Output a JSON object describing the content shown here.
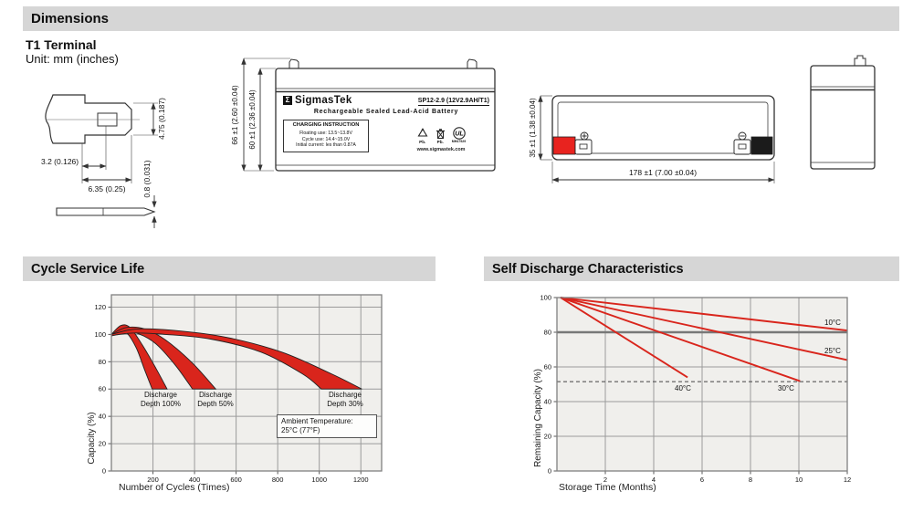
{
  "sections": {
    "dimensions_title": "Dimensions",
    "cycle_title": "Cycle Service Life",
    "self_discharge_title": "Self Discharge Characteristics"
  },
  "dimensions": {
    "subtitle": "T1 Terminal",
    "unit": "Unit: mm (inches)",
    "terminal_dims": {
      "height": "4.75 (0.187)",
      "offset": "3.2 (0.126)",
      "width": "6.35 (0.25)",
      "thickness": "0.8 (0.031)"
    },
    "front_dims": {
      "total_height": "66 ±1 (2.60 ±0.04)",
      "case_height": "60 ±1 (2.36 ±0.04)"
    },
    "top_dims": {
      "height": "35 ±1 (1.38 ±0.04)",
      "length": "178 ±1 (7.00 ±0.04)"
    },
    "label": {
      "logo_glyph": "Σ",
      "brand": "SigmasTek",
      "model": "SP12-2.9 (12V2.9AH/T1)",
      "type": "Rechargeable Sealed Lead-Acid Battery",
      "charging_title": "CHARGING INSTRUCTION",
      "charging_lines": [
        "Floating use: 13.5~13.8V",
        "Cycle use: 14.4~15.0V",
        "Initial current: les than 0.87A"
      ],
      "pb_recycle": "Pb.",
      "pb_bin": "Pb.",
      "ul_letters": "UL",
      "ul_code": "MH47929",
      "website": "www.sigmastek.com"
    }
  },
  "chart_data": [
    {
      "type": "area",
      "title": "Cycle Service Life",
      "xlabel": "Number of Cycles (Times)",
      "ylabel": "Capacity (%)",
      "xlim": [
        0,
        1300
      ],
      "ylim": [
        0,
        129
      ],
      "xticks": [
        200,
        400,
        600,
        800,
        1000,
        1200
      ],
      "yticks": [
        0,
        20,
        40,
        60,
        80,
        100,
        120
      ],
      "grid": true,
      "legend_position": "none",
      "bands": [
        {
          "name": "Discharge Depth 100%",
          "upper": [
            [
              0,
              100
            ],
            [
              45,
              106.5
            ],
            [
              90,
              105
            ],
            [
              150,
              92
            ],
            [
              215,
              75
            ],
            [
              268,
              60
            ]
          ],
          "lower": [
            [
              0,
              99
            ],
            [
              40,
              102.5
            ],
            [
              75,
              101
            ],
            [
              120,
              90
            ],
            [
              160,
              74
            ],
            [
              196,
              60
            ]
          ]
        },
        {
          "name": "Discharge Depth 50%",
          "upper": [
            [
              0,
              100
            ],
            [
              70,
              105
            ],
            [
              160,
              104
            ],
            [
              260,
              96
            ],
            [
              390,
              79
            ],
            [
              502,
              60
            ]
          ],
          "lower": [
            [
              0,
              99
            ],
            [
              60,
              101.5
            ],
            [
              130,
              100.5
            ],
            [
              215,
              93
            ],
            [
              310,
              77
            ],
            [
              390,
              60
            ]
          ]
        },
        {
          "name": "Discharge Depth 30%",
          "upper": [
            [
              0,
              100
            ],
            [
              120,
              104
            ],
            [
              300,
              103
            ],
            [
              550,
              98
            ],
            [
              820,
              87
            ],
            [
              1060,
              71
            ],
            [
              1205,
              60
            ]
          ],
          "lower": [
            [
              0,
              99
            ],
            [
              100,
              101
            ],
            [
              260,
              100
            ],
            [
              480,
              96.5
            ],
            [
              720,
              87
            ],
            [
              920,
              71
            ],
            [
              1010,
              60
            ]
          ]
        }
      ],
      "annotations": {
        "band1": [
          "Discharge",
          "Depth 100%"
        ],
        "band2": [
          "Discharge",
          "Depth 50%"
        ],
        "band3": [
          "Discharge",
          "Depth 30%"
        ],
        "ambient": [
          "Ambient Temperature:",
          "25°C (77°F)"
        ]
      }
    },
    {
      "type": "line",
      "title": "Self Discharge Characteristics",
      "xlabel": "Storage Time (Months)",
      "ylabel": "Remaining Capacity (%)",
      "xlim": [
        0,
        12
      ],
      "ylim": [
        0,
        100
      ],
      "xticks": [
        2,
        4,
        6,
        8,
        10,
        12
      ],
      "yticks": [
        0,
        20,
        40,
        60,
        80,
        100
      ],
      "grid": true,
      "legend_position": "inline",
      "series": [
        {
          "name": "10°C",
          "points": [
            [
              0.15,
              100
            ],
            [
              12,
              81
            ]
          ]
        },
        {
          "name": "25°C",
          "points": [
            [
              0.15,
              100
            ],
            [
              12,
              64
            ]
          ]
        },
        {
          "name": "30°C",
          "points": [
            [
              0.15,
              100
            ],
            [
              10.05,
              51.8
            ]
          ]
        },
        {
          "name": "40°C",
          "points": [
            [
              0.15,
              100
            ],
            [
              5.4,
              54
            ]
          ]
        }
      ],
      "dashed_y": 51.5,
      "emphasized_gridline_y": 80
    }
  ],
  "colors": {
    "accent_red": "#d9251c",
    "terminal_red": "#e8231f",
    "header_bg": "#d6d6d6",
    "plot_bg": "#f0efec",
    "grid": "#9b9b9b",
    "plot_border": "#808080"
  }
}
